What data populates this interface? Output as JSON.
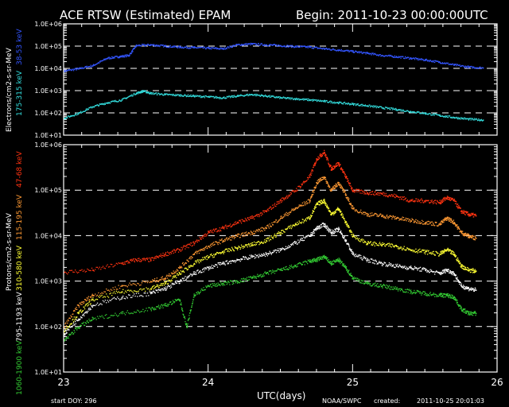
{
  "header": {
    "title": "ACE RTSW (Estimated) EPAM",
    "begin": "Begin: 2011-10-23 00:00:00UTC"
  },
  "footer": {
    "start_doy": "start DOY:  296",
    "source": "NOAA/SWPC",
    "created_label": "created:",
    "created_value": "2011-10-25 20:01:03"
  },
  "colors": {
    "background": "#000000",
    "axes": "#ffffff",
    "e38": "#3355ff",
    "e175": "#33dddd",
    "p47": "#ff3311",
    "p115": "#ff9933",
    "p310": "#ffff33",
    "p795": "#ffffff",
    "p1060": "#33cc33"
  },
  "chart_data": [
    {
      "type": "scatter",
      "name": "electrons",
      "ylabel": "Electrons/cm2-s-sr-MeV",
      "yscale": "log",
      "ylim": [
        10,
        1000000
      ],
      "yticks": [
        "1.0E+01",
        "1.0E+02",
        "1.0E+03",
        "1.0E+04",
        "1.0E+05",
        "1.0E+06"
      ],
      "xlim": [
        23,
        26
      ],
      "gridlines": [
        100,
        1000,
        10000,
        100000
      ],
      "series": [
        {
          "name": "38-53 keV",
          "color_key": "e38",
          "points": [
            [
              23.0,
              8000
            ],
            [
              23.1,
              10000
            ],
            [
              23.2,
              14000
            ],
            [
              23.3,
              30000
            ],
            [
              23.38,
              35000
            ],
            [
              23.45,
              40000
            ],
            [
              23.5,
              110000
            ],
            [
              23.6,
              120000
            ],
            [
              23.7,
              105000
            ],
            [
              23.8,
              95000
            ],
            [
              23.9,
              90000
            ],
            [
              24.0,
              85000
            ],
            [
              24.1,
              80000
            ],
            [
              24.2,
              120000
            ],
            [
              24.3,
              130000
            ],
            [
              24.4,
              120000
            ],
            [
              24.5,
              110000
            ],
            [
              24.6,
              100000
            ],
            [
              24.7,
              95000
            ],
            [
              24.8,
              80000
            ],
            [
              24.9,
              70000
            ],
            [
              25.0,
              60000
            ],
            [
              25.1,
              50000
            ],
            [
              25.2,
              40000
            ],
            [
              25.3,
              35000
            ],
            [
              25.4,
              30000
            ],
            [
              25.5,
              25000
            ],
            [
              25.6,
              20000
            ],
            [
              25.7,
              15000
            ],
            [
              25.8,
              12000
            ],
            [
              25.9,
              11000
            ]
          ]
        },
        {
          "name": "175-315 keV",
          "color_key": "e175",
          "points": [
            [
              23.0,
              60
            ],
            [
              23.1,
              100
            ],
            [
              23.2,
              200
            ],
            [
              23.3,
              300
            ],
            [
              23.4,
              400
            ],
            [
              23.5,
              800
            ],
            [
              23.55,
              1000
            ],
            [
              23.6,
              800
            ],
            [
              23.7,
              700
            ],
            [
              23.8,
              650
            ],
            [
              23.9,
              600
            ],
            [
              24.0,
              550
            ],
            [
              24.1,
              500
            ],
            [
              24.2,
              600
            ],
            [
              24.3,
              700
            ],
            [
              24.4,
              600
            ],
            [
              24.5,
              500
            ],
            [
              24.6,
              450
            ],
            [
              24.7,
              400
            ],
            [
              24.8,
              350
            ],
            [
              24.9,
              300
            ],
            [
              25.0,
              260
            ],
            [
              25.1,
              220
            ],
            [
              25.2,
              180
            ],
            [
              25.3,
              150
            ],
            [
              25.4,
              120
            ],
            [
              25.5,
              100
            ],
            [
              25.6,
              80
            ],
            [
              25.7,
              65
            ],
            [
              25.8,
              55
            ],
            [
              25.9,
              50
            ]
          ]
        }
      ]
    },
    {
      "type": "scatter",
      "name": "protons",
      "ylabel": "Protons/cm2-s-sr-MeV",
      "yscale": "log",
      "ylim": [
        10,
        1000000
      ],
      "yticks": [
        "1.0E+01",
        "1.0E+02",
        "1.0E+03",
        "1.0E+04",
        "1.0E+05",
        "1.0E+06"
      ],
      "xlim": [
        23,
        26
      ],
      "xticks": [
        23,
        24,
        25,
        26
      ],
      "xlabel": "UTC(days)",
      "gridlines": [
        100,
        1000,
        10000,
        100000
      ],
      "series": [
        {
          "name": "47-68 keV",
          "color_key": "p47",
          "points": [
            [
              23.0,
              1600
            ],
            [
              23.2,
              1800
            ],
            [
              23.4,
              2500
            ],
            [
              23.5,
              3000
            ],
            [
              23.6,
              3000
            ],
            [
              23.7,
              4000
            ],
            [
              23.8,
              5000
            ],
            [
              23.9,
              7000
            ],
            [
              24.0,
              12000
            ],
            [
              24.1,
              15000
            ],
            [
              24.2,
              20000
            ],
            [
              24.3,
              25000
            ],
            [
              24.4,
              35000
            ],
            [
              24.5,
              60000
            ],
            [
              24.6,
              100000
            ],
            [
              24.7,
              200000
            ],
            [
              24.75,
              500000
            ],
            [
              24.8,
              700000
            ],
            [
              24.85,
              300000
            ],
            [
              24.9,
              400000
            ],
            [
              24.95,
              200000
            ],
            [
              25.0,
              100000
            ],
            [
              25.1,
              90000
            ],
            [
              25.2,
              85000
            ],
            [
              25.3,
              75000
            ],
            [
              25.4,
              60000
            ],
            [
              25.5,
              60000
            ],
            [
              25.6,
              55000
            ],
            [
              25.65,
              70000
            ],
            [
              25.7,
              60000
            ],
            [
              25.75,
              35000
            ],
            [
              25.8,
              30000
            ],
            [
              25.85,
              28000
            ]
          ]
        },
        {
          "name": "115-195 keV",
          "color_key": "p115",
          "points": [
            [
              23.0,
              100
            ],
            [
              23.1,
              300
            ],
            [
              23.2,
              500
            ],
            [
              23.4,
              800
            ],
            [
              23.6,
              1000
            ],
            [
              23.7,
              1200
            ],
            [
              23.8,
              2000
            ],
            [
              23.9,
              4000
            ],
            [
              24.0,
              6000
            ],
            [
              24.1,
              8000
            ],
            [
              24.2,
              10000
            ],
            [
              24.3,
              12000
            ],
            [
              24.4,
              15000
            ],
            [
              24.5,
              25000
            ],
            [
              24.6,
              40000
            ],
            [
              24.7,
              60000
            ],
            [
              24.75,
              150000
            ],
            [
              24.8,
              200000
            ],
            [
              24.85,
              100000
            ],
            [
              24.9,
              150000
            ],
            [
              24.95,
              80000
            ],
            [
              25.0,
              40000
            ],
            [
              25.1,
              30000
            ],
            [
              25.2,
              28000
            ],
            [
              25.3,
              25000
            ],
            [
              25.4,
              22000
            ],
            [
              25.5,
              20000
            ],
            [
              25.6,
              18000
            ],
            [
              25.65,
              25000
            ],
            [
              25.7,
              20000
            ],
            [
              25.75,
              12000
            ],
            [
              25.8,
              10000
            ],
            [
              25.85,
              9000
            ]
          ]
        },
        {
          "name": "310-580 keV",
          "color_key": "p310",
          "points": [
            [
              23.0,
              80
            ],
            [
              23.1,
              200
            ],
            [
              23.2,
              400
            ],
            [
              23.4,
              600
            ],
            [
              23.6,
              700
            ],
            [
              23.7,
              900
            ],
            [
              23.8,
              1500
            ],
            [
              23.9,
              2500
            ],
            [
              24.0,
              3500
            ],
            [
              24.1,
              4500
            ],
            [
              24.2,
              5500
            ],
            [
              24.3,
              6500
            ],
            [
              24.4,
              8000
            ],
            [
              24.5,
              12000
            ],
            [
              24.6,
              18000
            ],
            [
              24.7,
              25000
            ],
            [
              24.75,
              50000
            ],
            [
              24.8,
              60000
            ],
            [
              24.85,
              30000
            ],
            [
              24.9,
              40000
            ],
            [
              24.95,
              20000
            ],
            [
              25.0,
              10000
            ],
            [
              25.1,
              7000
            ],
            [
              25.2,
              6500
            ],
            [
              25.3,
              6000
            ],
            [
              25.4,
              5000
            ],
            [
              25.5,
              4500
            ],
            [
              25.6,
              4000
            ],
            [
              25.65,
              5000
            ],
            [
              25.7,
              4000
            ],
            [
              25.75,
              2200
            ],
            [
              25.8,
              1800
            ],
            [
              25.85,
              1700
            ]
          ]
        },
        {
          "name": "795-1193 keV",
          "color_key": "p795",
          "points": [
            [
              23.0,
              70
            ],
            [
              23.1,
              150
            ],
            [
              23.2,
              300
            ],
            [
              23.4,
              450
            ],
            [
              23.6,
              550
            ],
            [
              23.7,
              700
            ],
            [
              23.8,
              1000
            ],
            [
              23.9,
              1500
            ],
            [
              24.0,
              2000
            ],
            [
              24.1,
              2500
            ],
            [
              24.2,
              3000
            ],
            [
              24.3,
              3500
            ],
            [
              24.4,
              4000
            ],
            [
              24.5,
              5000
            ],
            [
              24.6,
              7000
            ],
            [
              24.7,
              10000
            ],
            [
              24.75,
              15000
            ],
            [
              24.8,
              18000
            ],
            [
              24.85,
              12000
            ],
            [
              24.9,
              14000
            ],
            [
              24.95,
              8000
            ],
            [
              25.0,
              4000
            ],
            [
              25.1,
              3000
            ],
            [
              25.2,
              2500
            ],
            [
              25.3,
              2200
            ],
            [
              25.4,
              2000
            ],
            [
              25.5,
              1800
            ],
            [
              25.6,
              1500
            ],
            [
              25.65,
              1800
            ],
            [
              25.7,
              1500
            ],
            [
              25.75,
              800
            ],
            [
              25.8,
              700
            ],
            [
              25.85,
              650
            ]
          ]
        },
        {
          "name": "1060-1900 keV",
          "color_key": "p1060",
          "points": [
            [
              23.0,
              50
            ],
            [
              23.1,
              100
            ],
            [
              23.2,
              150
            ],
            [
              23.4,
              200
            ],
            [
              23.6,
              250
            ],
            [
              23.7,
              300
            ],
            [
              23.8,
              400
            ],
            [
              23.85,
              100
            ],
            [
              23.9,
              500
            ],
            [
              24.0,
              800
            ],
            [
              24.1,
              900
            ],
            [
              24.2,
              1000
            ],
            [
              24.3,
              1200
            ],
            [
              24.4,
              1500
            ],
            [
              24.5,
              1800
            ],
            [
              24.6,
              2200
            ],
            [
              24.7,
              2800
            ],
            [
              24.75,
              3000
            ],
            [
              24.8,
              3500
            ],
            [
              24.85,
              2500
            ],
            [
              24.9,
              3000
            ],
            [
              24.95,
              2000
            ],
            [
              25.0,
              1200
            ],
            [
              25.1,
              900
            ],
            [
              25.2,
              800
            ],
            [
              25.3,
              700
            ],
            [
              25.4,
              600
            ],
            [
              25.5,
              550
            ],
            [
              25.6,
              500
            ],
            [
              25.65,
              500
            ],
            [
              25.7,
              450
            ],
            [
              25.75,
              250
            ],
            [
              25.8,
              200
            ],
            [
              25.85,
              200
            ]
          ]
        }
      ]
    }
  ]
}
